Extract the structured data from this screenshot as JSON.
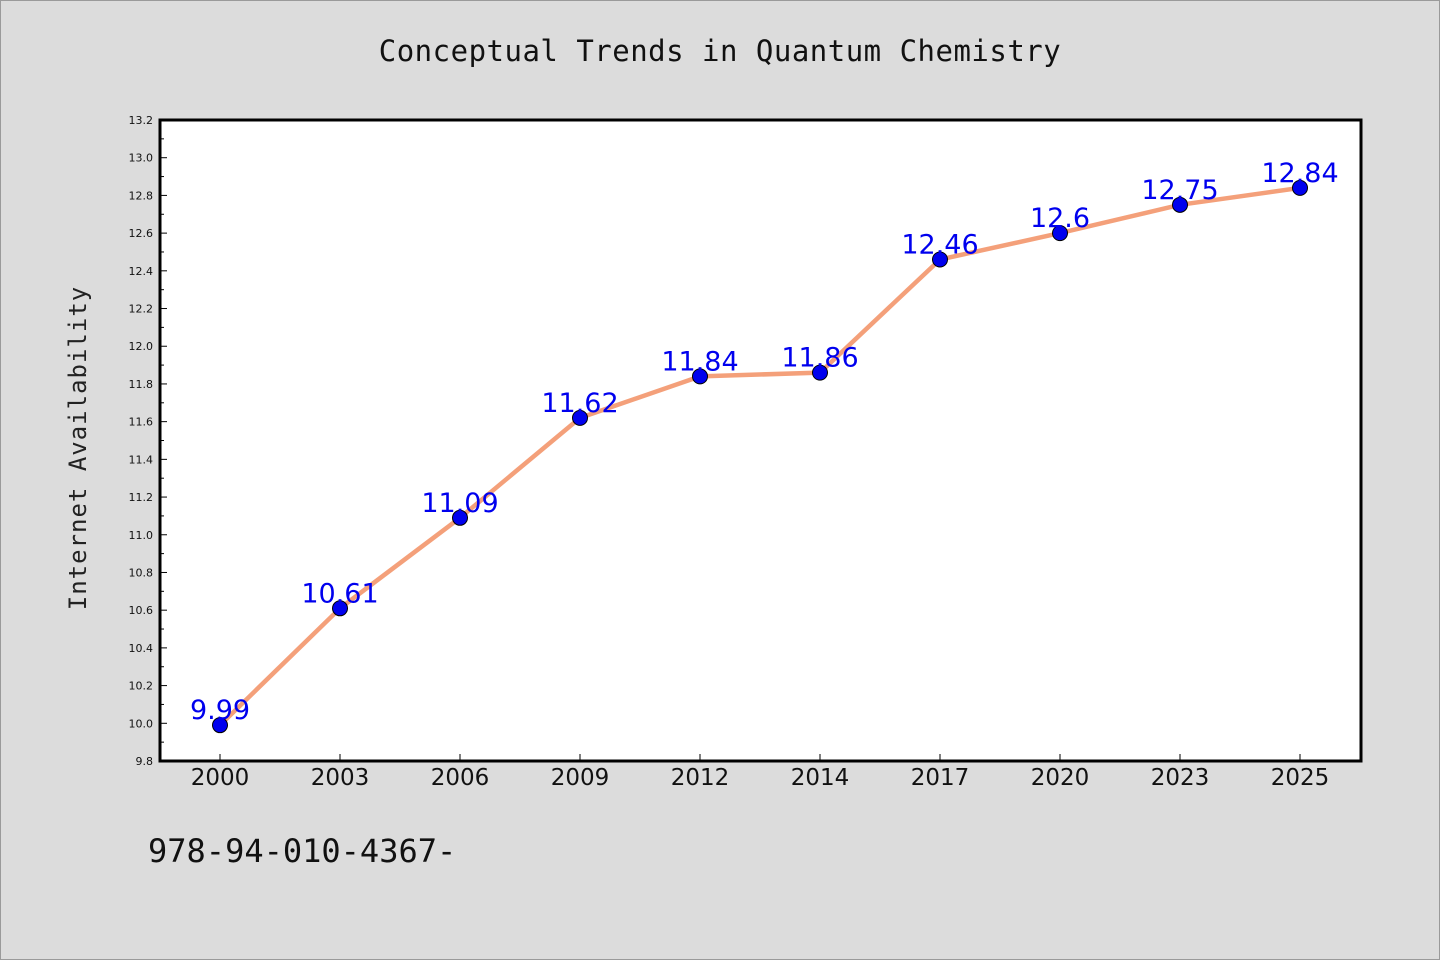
{
  "title": "Conceptual Trends in Quantum Chemistry",
  "footer": "978-94-010-4367-",
  "chart_data": {
    "type": "line",
    "title": "Conceptual Trends in Quantum Chemistry",
    "xlabel": "",
    "ylabel": "Internet Availability",
    "categories": [
      "2000",
      "2003",
      "2006",
      "2009",
      "2012",
      "2014",
      "2017",
      "2020",
      "2023",
      "2025"
    ],
    "values": [
      9.99,
      10.61,
      11.09,
      11.62,
      11.84,
      11.86,
      12.46,
      12.6,
      12.75,
      12.84
    ],
    "data_labels": [
      "9.99",
      "10.61",
      "11.09",
      "11.62",
      "11.84",
      "11.86",
      "12.46",
      "12.6",
      "12.75",
      "12.84"
    ],
    "ylim": [
      9.8,
      13.2
    ],
    "yticks": [
      "9.8",
      "10.0",
      "10.2",
      "10.4",
      "10.6",
      "10.8",
      "11.0",
      "11.2",
      "11.4",
      "11.6",
      "11.8",
      "12.0",
      "12.2",
      "12.4",
      "12.6",
      "12.8",
      "13.0",
      "13.2"
    ],
    "grid": false,
    "line_color": "#f4a07a",
    "marker_color": "#0000ee",
    "label_color": "#0000ee"
  }
}
